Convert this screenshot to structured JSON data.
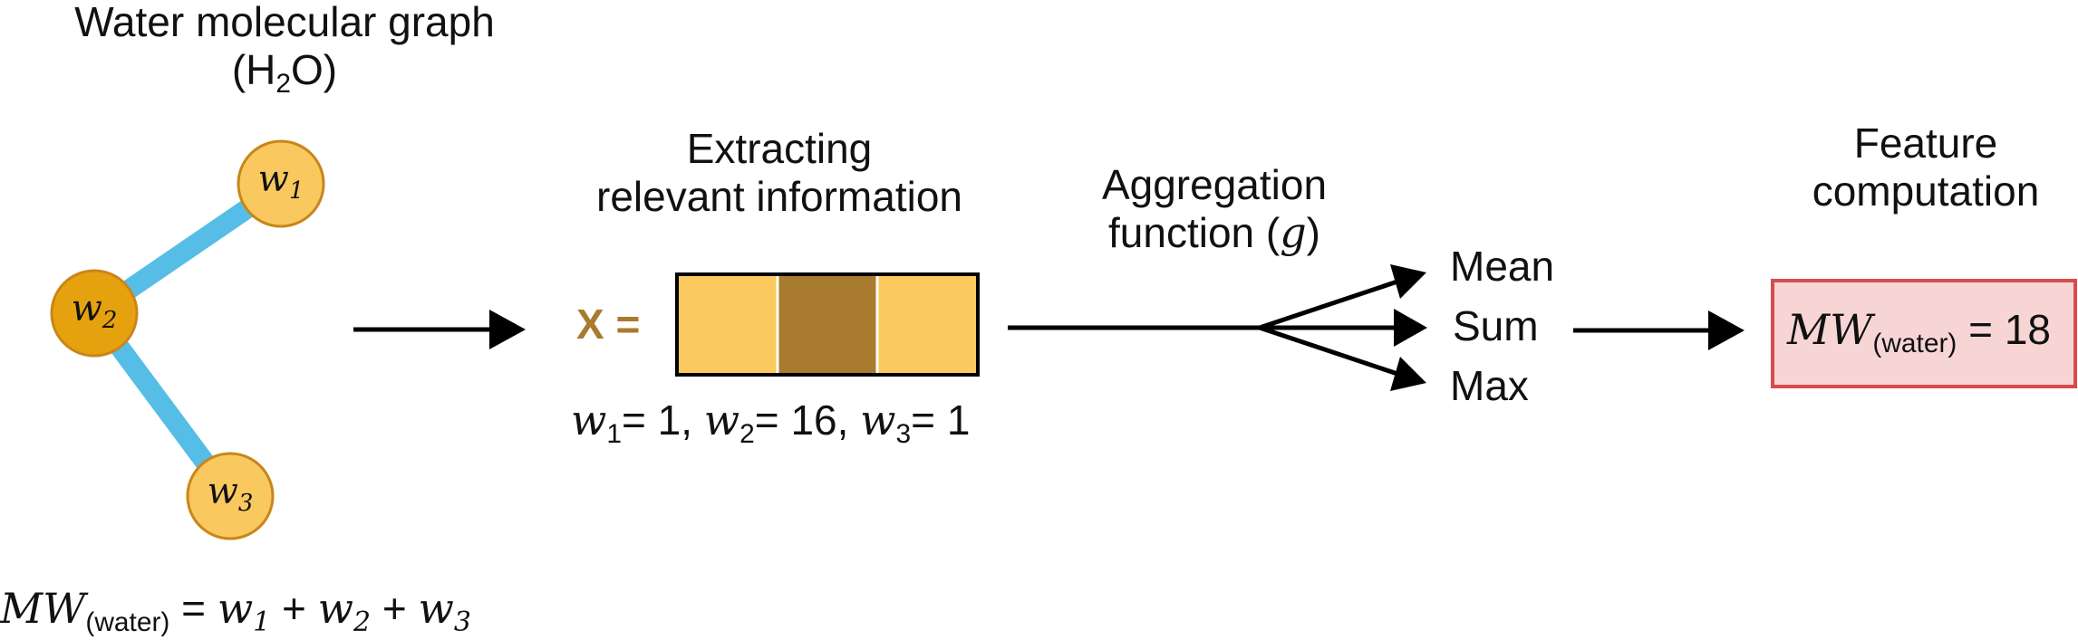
{
  "graph": {
    "title_line1": "Water molecular graph",
    "formula_prefix": "(H",
    "formula_sub": "2",
    "formula_suffix": "O)",
    "nodes": [
      {
        "letter": "w",
        "sub": "1"
      },
      {
        "letter": "w",
        "sub": "2"
      },
      {
        "letter": "w",
        "sub": "3"
      }
    ],
    "equation": {
      "lhs": "MW",
      "lhs_sub": "(water)",
      "eq": " = ",
      "term1": "w",
      "term1_sub": "1",
      "plus1": " + ",
      "term2": "w",
      "term2_sub": "2",
      "plus2": " + ",
      "term3": "w",
      "term3_sub": "3"
    }
  },
  "extract": {
    "title_line1": "Extracting",
    "title_line2": "relevant information",
    "vector_label": "X =",
    "weights": [
      {
        "letter": "w",
        "sub": "1",
        "value": "= 1,"
      },
      {
        "letter": "w",
        "sub": "2",
        "value": "= 16,"
      },
      {
        "letter": "w",
        "sub": "3",
        "value": "= 1"
      }
    ]
  },
  "aggregation": {
    "title_line1": "Aggregation",
    "title_line2_prefix": "function (",
    "title_line2_symbol": "g",
    "title_line2_suffix": ")",
    "options": [
      "Mean",
      "Sum",
      "Max"
    ]
  },
  "feature": {
    "title_line1": "Feature",
    "title_line2": "computation",
    "result_lhs": "MW",
    "result_sub": "(water)",
    "result_value": " = 18"
  },
  "colors": {
    "node_light": "#f9c85f",
    "node_dark": "#e6a20e",
    "node_stroke": "#c8861a",
    "bond": "#55bde6",
    "cell_light": "#fbc95e",
    "cell_dark": "#a87b2e",
    "x_label": "#a87b2e",
    "result_fill": "#f8d5d5",
    "result_stroke": "#d84b4b"
  }
}
